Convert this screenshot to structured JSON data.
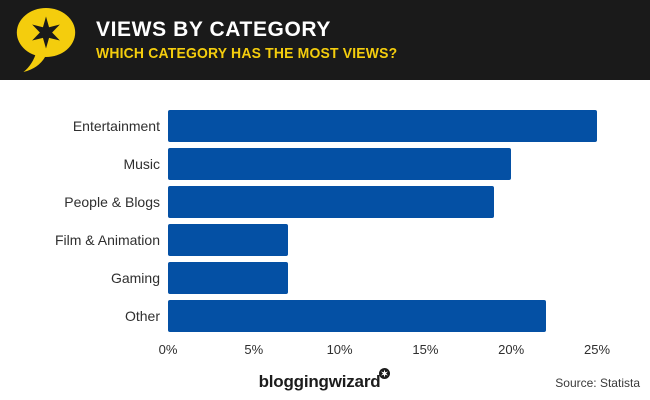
{
  "header": {
    "title": "VIEWS BY CATEGORY",
    "subtitle": "WHICH CATEGORY HAS THE MOST VIEWS?",
    "bg_color": "#1a1a1a",
    "title_color": "#ffffff",
    "accent_color": "#f4cd0d",
    "logo_icon": "speech-bubble-star-logo"
  },
  "chart_data": {
    "type": "bar",
    "orientation": "horizontal",
    "title": "VIEWS BY CATEGORY",
    "subtitle": "WHICH CATEGORY HAS THE MOST VIEWS?",
    "categories": [
      "Entertainment",
      "Music",
      "People & Blogs",
      "Film & Animation",
      "Gaming",
      "Other"
    ],
    "values": [
      25,
      20,
      19,
      7,
      7,
      22
    ],
    "value_suffix": "%",
    "xlim": [
      0,
      25
    ],
    "x_ticks": [
      "0%",
      "5%",
      "10%",
      "15%",
      "20%",
      "25%"
    ],
    "bar_color": "#0450a4",
    "xlabel": "",
    "ylabel": "",
    "grid": false,
    "legend": false
  },
  "footer": {
    "brand": "bloggingwizard",
    "brand_icon": "circle-star-icon",
    "source": "Source: Statista"
  }
}
